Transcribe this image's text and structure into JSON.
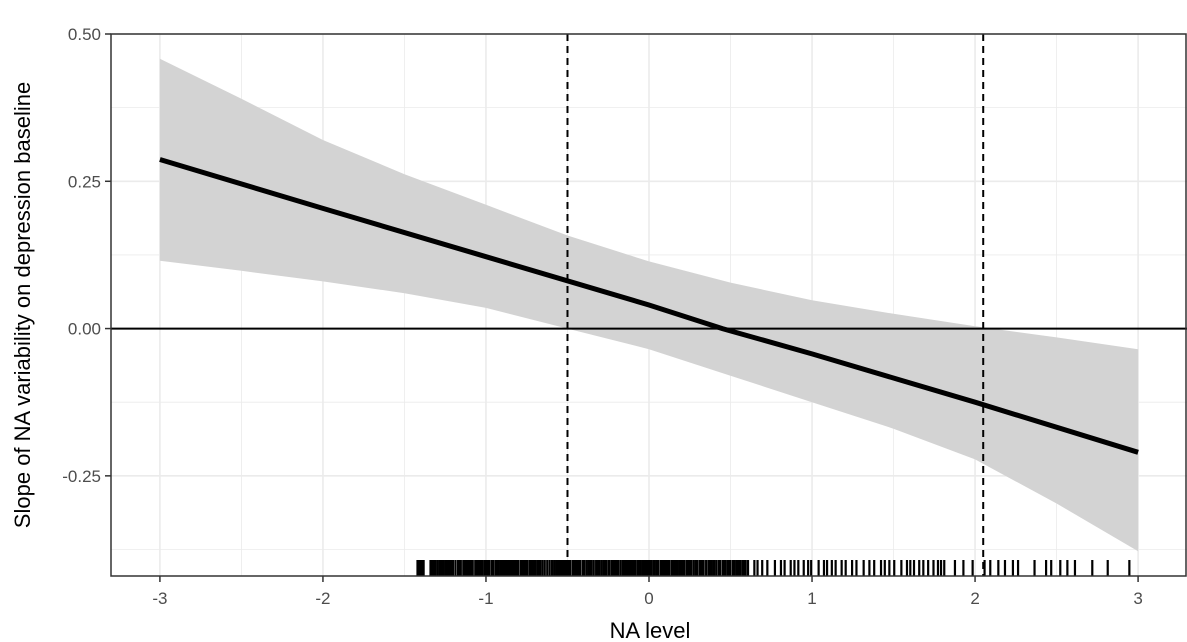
{
  "chart_data": {
    "type": "line",
    "xlabel": "NA level",
    "ylabel": "Slope of NA variability on depression baseline",
    "xlim": [
      -3.3,
      3.3
    ],
    "ylim": [
      -0.42,
      0.5
    ],
    "x_ticks": [
      -3,
      -2,
      -1,
      0,
      1,
      2,
      3
    ],
    "x_tick_labels": [
      "-3",
      "-2",
      "-1",
      "0",
      "1",
      "2",
      "3"
    ],
    "y_ticks": [
      -0.25,
      0.0,
      0.25,
      0.5
    ],
    "y_tick_labels": [
      "-0.25",
      "0.00",
      "0.25",
      "0.50"
    ],
    "grid": true,
    "series": [
      {
        "x": [
          -3,
          -2,
          -1,
          0,
          0.45,
          1,
          2,
          3
        ],
        "y": [
          0.287,
          0.204,
          0.122,
          0.04,
          0.0,
          -0.043,
          -0.125,
          -0.21
        ]
      }
    ],
    "confidence_band": {
      "x": [
        -3,
        -2.5,
        -2,
        -1.5,
        -1,
        -0.5,
        0,
        0.5,
        1,
        1.5,
        2,
        2.5,
        3
      ],
      "lower": [
        0.115,
        0.098,
        0.08,
        0.06,
        0.035,
        0.0,
        -0.035,
        -0.08,
        -0.125,
        -0.17,
        -0.222,
        -0.297,
        -0.378
      ],
      "upper": [
        0.458,
        0.39,
        0.32,
        0.262,
        0.21,
        0.158,
        0.114,
        0.078,
        0.048,
        0.025,
        0.004,
        -0.015,
        -0.035
      ]
    },
    "reference_lines": {
      "horizontal_y": 0.0,
      "vertical_dashed_x": [
        -0.5,
        2.05
      ]
    },
    "rug": {
      "x_min": -1.42,
      "x_max": 2.97,
      "gaps": [
        [
          -1.38,
          -1.35
        ],
        [
          2.28,
          2.32
        ],
        [
          2.62,
          2.67
        ],
        [
          2.76,
          2.8
        ],
        [
          2.87,
          2.9
        ]
      ]
    },
    "colors": {
      "line": "#000000",
      "band": "#d3d3d3",
      "grid": "#ebebeb",
      "panel_border": "#333333"
    }
  }
}
